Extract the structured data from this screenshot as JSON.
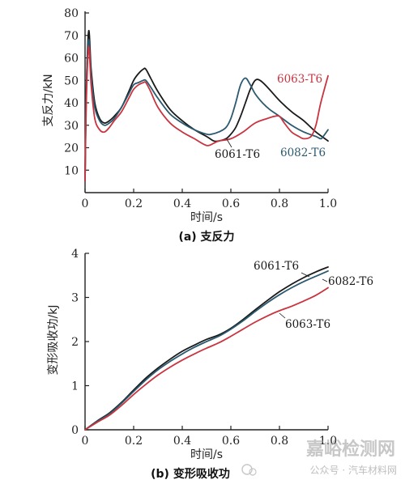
{
  "chart_data": [
    {
      "type": "line",
      "caption": "(a) 支反力",
      "xlabel": "时间/s",
      "ylabel": "支反力/kN",
      "xlim": [
        0,
        1.0
      ],
      "ylim": [
        0,
        80
      ],
      "xticks": [
        "0",
        "0.2",
        "0.4",
        "0.6",
        "0.8",
        "1.0"
      ],
      "yticks": [
        "10",
        "20",
        "30",
        "40",
        "50",
        "60",
        "70",
        "80"
      ],
      "grid": false,
      "series": [
        {
          "name": "6061-T6",
          "color": "#1a1a1a",
          "x": [
            0.0,
            0.005,
            0.015,
            0.025,
            0.04,
            0.06,
            0.08,
            0.1,
            0.12,
            0.15,
            0.18,
            0.2,
            0.22,
            0.24,
            0.25,
            0.27,
            0.3,
            0.35,
            0.4,
            0.45,
            0.5,
            0.53,
            0.55,
            0.58,
            0.6,
            0.62,
            0.64,
            0.66,
            0.68,
            0.7,
            0.72,
            0.75,
            0.8,
            0.85,
            0.9,
            0.95,
            1.0
          ],
          "y": [
            5,
            45,
            72,
            55,
            40,
            33,
            31,
            32,
            34,
            38,
            45,
            50,
            53,
            55,
            55,
            51,
            45,
            37,
            32,
            28,
            25,
            23,
            23,
            24,
            26,
            29,
            34,
            40,
            46,
            50,
            50,
            47,
            41,
            36,
            32,
            27,
            23
          ]
        },
        {
          "name": "6082-T6",
          "color": "#2b5a70",
          "x": [
            0.0,
            0.005,
            0.015,
            0.025,
            0.04,
            0.06,
            0.08,
            0.1,
            0.12,
            0.15,
            0.18,
            0.2,
            0.22,
            0.24,
            0.25,
            0.27,
            0.3,
            0.35,
            0.4,
            0.45,
            0.5,
            0.52,
            0.55,
            0.58,
            0.6,
            0.62,
            0.64,
            0.66,
            0.68,
            0.7,
            0.73,
            0.76,
            0.8,
            0.85,
            0.9,
            0.95,
            0.97,
            0.98,
            1.0
          ],
          "y": [
            5,
            45,
            68,
            52,
            38,
            32,
            30,
            31,
            33,
            38,
            44,
            48,
            49,
            50,
            50,
            47,
            42,
            35,
            31,
            28,
            26,
            26,
            27,
            29,
            33,
            40,
            48,
            51,
            48,
            44,
            40,
            37,
            34,
            30,
            27,
            25,
            24,
            25,
            28
          ]
        },
        {
          "name": "6063-T6",
          "color": "#c9343f",
          "x": [
            0.0,
            0.005,
            0.015,
            0.025,
            0.04,
            0.06,
            0.08,
            0.1,
            0.12,
            0.15,
            0.18,
            0.2,
            0.22,
            0.24,
            0.25,
            0.27,
            0.3,
            0.35,
            0.4,
            0.45,
            0.5,
            0.53,
            0.55,
            0.6,
            0.65,
            0.7,
            0.75,
            0.78,
            0.8,
            0.82,
            0.85,
            0.88,
            0.9,
            0.93,
            0.95,
            0.97,
            1.0
          ],
          "y": [
            5,
            40,
            65,
            48,
            33,
            28,
            27,
            29,
            32,
            36,
            42,
            46,
            48,
            49,
            49,
            45,
            38,
            31,
            27,
            24,
            21,
            22,
            23,
            24,
            27,
            31,
            33,
            34,
            34,
            31,
            27,
            25,
            24,
            25,
            30,
            40,
            52
          ]
        }
      ],
      "annotations": [
        {
          "text": "6063-T6",
          "color": "#c9343f"
        },
        {
          "text": "6061-T6",
          "color": "#1a1a1a"
        },
        {
          "text": "6082-T6",
          "color": "#2b5a70"
        }
      ]
    },
    {
      "type": "line",
      "caption": "(b) 变形吸收功",
      "xlabel": "时间/s",
      "ylabel": "变形吸收功/kJ",
      "xlim": [
        0,
        1.0
      ],
      "ylim": [
        0,
        4
      ],
      "xticks": [
        "0",
        "0.2",
        "0.4",
        "0.6",
        "0.8",
        "1.0"
      ],
      "yticks": [
        "0",
        "1",
        "2",
        "3",
        "4"
      ],
      "grid": false,
      "series": [
        {
          "name": "6061-T6",
          "color": "#1a1a1a",
          "x": [
            0.0,
            0.05,
            0.1,
            0.15,
            0.2,
            0.25,
            0.3,
            0.35,
            0.4,
            0.45,
            0.5,
            0.55,
            0.6,
            0.65,
            0.7,
            0.75,
            0.8,
            0.85,
            0.9,
            0.95,
            1.0
          ],
          "y": [
            0,
            0.2,
            0.38,
            0.62,
            0.9,
            1.17,
            1.4,
            1.6,
            1.78,
            1.92,
            2.05,
            2.15,
            2.3,
            2.5,
            2.72,
            2.93,
            3.13,
            3.3,
            3.45,
            3.58,
            3.69
          ]
        },
        {
          "name": "6082-T6",
          "color": "#2b5a70",
          "x": [
            0.0,
            0.05,
            0.1,
            0.15,
            0.2,
            0.25,
            0.3,
            0.35,
            0.4,
            0.45,
            0.5,
            0.55,
            0.6,
            0.65,
            0.7,
            0.75,
            0.8,
            0.85,
            0.9,
            0.95,
            1.0
          ],
          "y": [
            0,
            0.19,
            0.36,
            0.6,
            0.87,
            1.13,
            1.36,
            1.55,
            1.72,
            1.87,
            2.0,
            2.12,
            2.28,
            2.47,
            2.68,
            2.88,
            3.06,
            3.22,
            3.36,
            3.48,
            3.6
          ]
        },
        {
          "name": "6063-T6",
          "color": "#c9343f",
          "x": [
            0.0,
            0.05,
            0.1,
            0.15,
            0.2,
            0.25,
            0.3,
            0.35,
            0.4,
            0.45,
            0.5,
            0.55,
            0.6,
            0.65,
            0.7,
            0.75,
            0.8,
            0.85,
            0.9,
            0.95,
            1.0
          ],
          "y": [
            0,
            0.17,
            0.33,
            0.55,
            0.8,
            1.03,
            1.24,
            1.42,
            1.58,
            1.72,
            1.85,
            1.97,
            2.12,
            2.28,
            2.44,
            2.58,
            2.7,
            2.8,
            2.92,
            3.05,
            3.22
          ]
        }
      ],
      "annotations": [
        {
          "text": "6061-T6",
          "color": "#1a1a1a"
        },
        {
          "text": "6082-T6",
          "color": "#1a1a1a"
        },
        {
          "text": "6063-T6",
          "color": "#1a1a1a"
        }
      ]
    }
  ],
  "watermark": {
    "site": "嘉峪检测网",
    "account": "公众号 · 汽车材料网"
  }
}
